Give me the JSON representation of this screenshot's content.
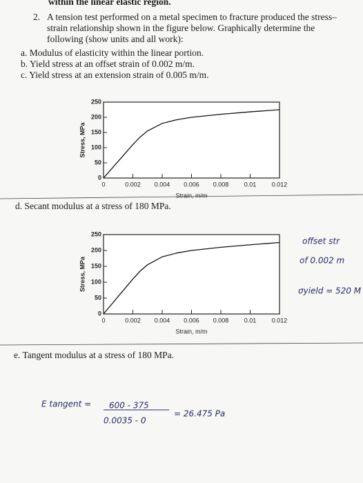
{
  "header": "within the linear elastic region.",
  "question": {
    "number": "2.",
    "lines": [
      "A tension test performed on a metal specimen to fracture produced the stress–",
      "strain relationship shown in the figure below. Graphically determine the",
      "following (show units and all work):"
    ]
  },
  "parts": [
    "a. Modulus of elasticity within the linear portion.",
    "b. Yield stress at an offset strain of 0.002 m/m.",
    "c. Yield stress at an extension strain of 0.005 m/m.",
    "d. Secant modulus at a stress of 180 MPa.",
    "e. Tangent modulus at a stress of 180 MPa."
  ],
  "charts": [
    {
      "type": "line",
      "xlabel": "Strain, m/m",
      "ylabel": "Stress, MPa",
      "x": [
        0,
        0.001,
        0.002,
        0.0025,
        0.003,
        0.004,
        0.005,
        0.006,
        0.008,
        0.01,
        0.012
      ],
      "values": [
        0,
        55,
        110,
        135,
        155,
        180,
        192,
        200,
        210,
        218,
        225
      ],
      "xlim": [
        0,
        0.012
      ],
      "ylim": [
        0,
        250
      ],
      "xticks": [
        0,
        0.002,
        0.004,
        0.006,
        0.008,
        0.01,
        0.012
      ],
      "yticks": [
        0,
        50,
        100,
        150,
        200,
        250
      ]
    },
    {
      "type": "line",
      "xlabel": "Strain, m/m",
      "ylabel": "Stress, MPa",
      "x": [
        0,
        0.001,
        0.002,
        0.0025,
        0.003,
        0.004,
        0.005,
        0.006,
        0.008,
        0.01,
        0.012
      ],
      "values": [
        0,
        55,
        110,
        135,
        155,
        180,
        192,
        200,
        210,
        218,
        225
      ],
      "xlim": [
        0,
        0.012
      ],
      "ylim": [
        0,
        250
      ],
      "xticks": [
        0,
        0.002,
        0.004,
        0.006,
        0.008,
        0.01,
        0.012
      ],
      "yticks": [
        0,
        50,
        100,
        150,
        200,
        250
      ]
    }
  ],
  "handwriting": [
    "offset str",
    "of 0.002 m",
    "σyield = 520 M",
    "E tangent =",
    "600 - 375",
    "0.0035 - 0",
    "= 26.475 Pa"
  ]
}
